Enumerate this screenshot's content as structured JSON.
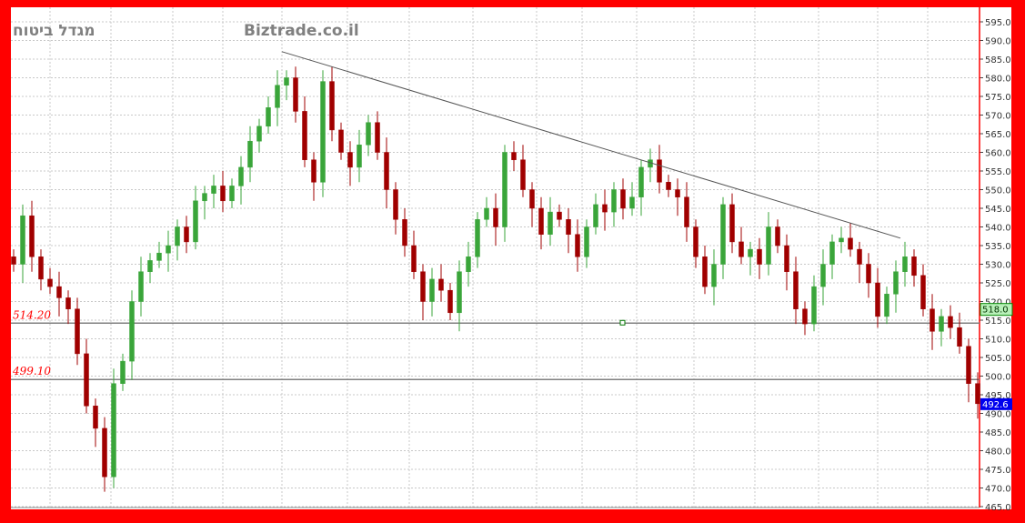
{
  "header": {
    "stock_name": "מגדל ביטוח",
    "site": "Biztrade.co.il"
  },
  "colors": {
    "up": "#3aa53a",
    "down": "#a00000",
    "border": "#ff0000",
    "last_price_bg": "#0000ee",
    "marker_bg": "#b8f0b8",
    "level_label": "#ff0000"
  },
  "chart_data": {
    "type": "candlestick",
    "ylim": [
      465,
      595
    ],
    "ytick_step": 5,
    "grid": true,
    "closes": [
      530,
      543,
      532,
      526,
      524,
      521,
      518,
      506,
      492,
      486,
      473,
      498,
      504,
      520,
      528,
      531,
      533,
      535,
      540,
      536,
      547,
      549,
      551,
      547,
      551,
      556,
      563,
      567,
      572,
      578,
      580,
      571,
      558,
      552,
      579,
      566,
      560,
      556,
      562,
      568,
      560,
      550,
      542,
      535,
      528,
      520,
      526,
      523,
      517,
      528,
      532,
      542,
      545,
      540,
      560,
      558,
      550,
      545,
      538,
      544,
      542,
      538,
      532,
      540,
      546,
      544,
      550,
      545,
      548,
      556,
      558,
      552,
      550,
      548,
      540,
      532,
      524,
      530,
      546,
      536,
      532,
      534,
      530,
      540,
      535,
      528,
      518,
      514,
      524,
      530,
      536,
      537,
      534,
      530,
      525,
      516,
      522,
      528,
      532,
      527,
      518,
      512,
      516,
      513,
      508,
      498,
      492.6
    ],
    "trendline": [
      {
        "index": 29.5,
        "price": 587
      },
      {
        "index": 97.5,
        "price": 537
      }
    ],
    "levels": [
      {
        "price": 514.2,
        "label": "514.20"
      },
      {
        "price": 499.1,
        "label": "499.10"
      }
    ],
    "markers": {
      "current_label": "518.0",
      "current_price": 518,
      "last_label": "492.6",
      "last_price": 492.6
    }
  }
}
